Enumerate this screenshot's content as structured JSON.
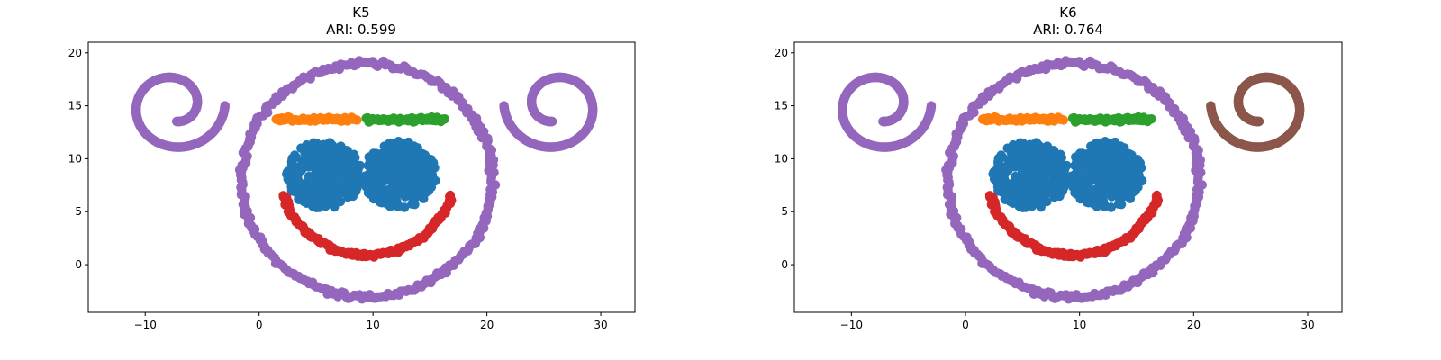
{
  "chart_data": [
    {
      "type": "scatter",
      "title": "K5",
      "subtitle": "ARI: 0.599",
      "xlabel": "",
      "ylabel": "",
      "xlim": [
        -15,
        33
      ],
      "ylim": [
        -4.5,
        21
      ],
      "xticks": [
        "−10",
        "0",
        "10",
        "20",
        "30"
      ],
      "yticks": [
        "0",
        "5",
        "10",
        "15",
        "20"
      ],
      "grid": false,
      "legend": "none",
      "clusters": [
        {
          "shape": "blob",
          "color": "#1f77b4",
          "center": [
            5.7,
            8.5
          ],
          "radii": [
            3.3,
            3.2
          ]
        },
        {
          "shape": "blob",
          "color": "#1f77b4",
          "center": [
            12.3,
            8.5
          ],
          "radii": [
            3.3,
            3.2
          ]
        },
        {
          "shape": "bar",
          "color": "#ff7f0e",
          "x_range": [
            1.5,
            8.6
          ],
          "y": 13.7
        },
        {
          "shape": "bar",
          "color": "#2ca02c",
          "x_range": [
            9.4,
            16.3
          ],
          "y": 13.7
        },
        {
          "shape": "arc",
          "color": "#d62728",
          "center": [
            9.5,
            8.5
          ],
          "radius": 7.6,
          "angle_deg": [
            195,
            345
          ]
        },
        {
          "shape": "ring",
          "color": "#9467bd",
          "center": [
            9.5,
            8.0
          ],
          "radius": 11.0
        },
        {
          "shape": "spiral",
          "color": "#9467bd",
          "center": [
            -7.5,
            15.0
          ],
          "start_angle_deg": -80,
          "end_angle_deg": 360,
          "r_start": 1.5,
          "r_end": 4.5,
          "direction": -1
        },
        {
          "shape": "spiral",
          "color": "#9467bd",
          "center": [
            26.0,
            15.0
          ],
          "start_angle_deg": 260,
          "end_angle_deg": -180,
          "r_start": 1.5,
          "r_end": 4.5,
          "direction": 1
        }
      ]
    },
    {
      "type": "scatter",
      "title": "K6",
      "subtitle": "ARI: 0.764",
      "xlabel": "",
      "ylabel": "",
      "xlim": [
        -15,
        33
      ],
      "ylim": [
        -4.5,
        21
      ],
      "xticks": [
        "−10",
        "0",
        "10",
        "20",
        "30"
      ],
      "yticks": [
        "0",
        "5",
        "10",
        "15",
        "20"
      ],
      "grid": false,
      "legend": "none",
      "clusters": [
        {
          "shape": "blob",
          "color": "#1f77b4",
          "center": [
            5.7,
            8.5
          ],
          "radii": [
            3.3,
            3.2
          ]
        },
        {
          "shape": "blob",
          "color": "#1f77b4",
          "center": [
            12.3,
            8.5
          ],
          "radii": [
            3.3,
            3.2
          ]
        },
        {
          "shape": "bar",
          "color": "#ff7f0e",
          "x_range": [
            1.5,
            8.6
          ],
          "y": 13.7
        },
        {
          "shape": "bar",
          "color": "#2ca02c",
          "x_range": [
            9.4,
            16.3
          ],
          "y": 13.7
        },
        {
          "shape": "arc",
          "color": "#d62728",
          "center": [
            9.5,
            8.5
          ],
          "radius": 7.6,
          "angle_deg": [
            195,
            345
          ]
        },
        {
          "shape": "ring",
          "color": "#9467bd",
          "center": [
            9.5,
            8.0
          ],
          "radius": 11.0
        },
        {
          "shape": "spiral",
          "color": "#9467bd",
          "center": [
            -7.5,
            15.0
          ],
          "start_angle_deg": -80,
          "end_angle_deg": 360,
          "r_start": 1.5,
          "r_end": 4.5,
          "direction": -1
        },
        {
          "shape": "spiral",
          "color": "#8c564b",
          "center": [
            26.0,
            15.0
          ],
          "start_angle_deg": 260,
          "end_angle_deg": -180,
          "r_start": 1.5,
          "r_end": 4.5,
          "direction": 1
        }
      ]
    }
  ]
}
